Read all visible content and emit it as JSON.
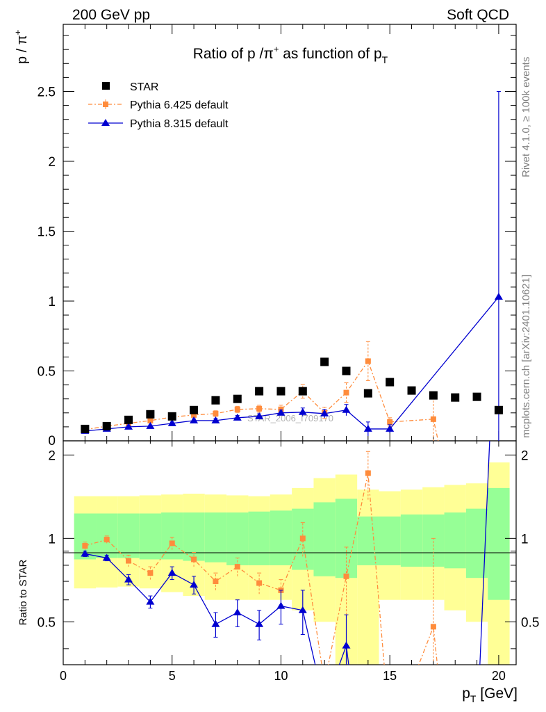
{
  "header": {
    "left": "200 GeV pp",
    "right": "Soft QCD"
  },
  "side_labels": {
    "rivet": "Rivet 4.1.0, ≥ 100k events",
    "mcplots": "mcplots.cern.ch [arXiv:2401.10621]"
  },
  "chart_data": {
    "type": "scatter",
    "title_parts": {
      "pre": "Ratio of p /π",
      "sup": "+",
      "mid": " as function of p",
      "sub": "T"
    },
    "ylabel_main": {
      "base": "p / π",
      "sup": "+"
    },
    "ylabel_ratio": "Ratio to STAR",
    "xlabel": {
      "base": "p",
      "sub": "T",
      "rest": " [GeV]"
    },
    "watermark": "STAR_2006_I709170",
    "xlim": [
      0,
      20.8
    ],
    "ylim_main": [
      0,
      2.98
    ],
    "ylim_ratio": [
      0.35,
      2.25
    ],
    "xticks": [
      0,
      5,
      10,
      15,
      20
    ],
    "xtick_labels": [
      "0",
      "5",
      "10",
      "15",
      "20"
    ],
    "yticks_main": [
      0.5,
      1,
      1.5,
      2,
      2.5
    ],
    "ytick_labels_main": [
      "0.5",
      "1",
      "1.5",
      "2",
      "2.5"
    ],
    "ytick_label_zero": "0",
    "yticks_ratio": [
      0.5,
      1,
      2
    ],
    "ytick_labels_ratio": [
      "0.5",
      "1",
      "2"
    ],
    "legend": [
      "STAR",
      "Pythia 6.425 default",
      "Pythia 8.315 default"
    ],
    "series": [
      {
        "name": "STAR",
        "color": "#000000",
        "marker": "square",
        "x": [
          1,
          2,
          3,
          4,
          5,
          6,
          7,
          8,
          9,
          10,
          11,
          12,
          13,
          14,
          15,
          16,
          17,
          18,
          19,
          20
        ],
        "y": [
          0.085,
          0.105,
          0.15,
          0.19,
          0.175,
          0.22,
          0.29,
          0.3,
          0.355,
          0.355,
          0.355,
          0.565,
          0.5,
          0.34,
          0.42,
          0.36,
          0.325,
          0.31,
          0.315,
          0.22
        ]
      },
      {
        "name": "Pythia 6.425 default",
        "color": "#ff8c3c",
        "marker": "square-small",
        "x": [
          1,
          2,
          3,
          4,
          5,
          6,
          7,
          8,
          9,
          10,
          11,
          12,
          13,
          14,
          15,
          17,
          17.5
        ],
        "y": [
          0.08,
          0.105,
          0.125,
          0.145,
          0.17,
          0.185,
          0.195,
          0.225,
          0.23,
          0.225,
          0.355,
          0.2,
          0.345,
          0.57,
          0.135,
          0.155,
          -0.2
        ],
        "err": [
          0.01,
          0.01,
          0.012,
          0.015,
          0.015,
          0.017,
          0.02,
          0.022,
          0.025,
          0.03,
          0.05,
          0.04,
          0.07,
          0.14,
          0.03,
          0.18,
          0
        ]
      },
      {
        "name": "Pythia 8.315 default",
        "color": "#0000d0",
        "marker": "triangle",
        "x": [
          1,
          2,
          3,
          4,
          5,
          6,
          7,
          8,
          9,
          10,
          11,
          12,
          13,
          14,
          15,
          20
        ],
        "y": [
          0.07,
          0.085,
          0.1,
          0.105,
          0.125,
          0.145,
          0.145,
          0.165,
          0.175,
          0.2,
          0.205,
          0.195,
          0.22,
          0.085,
          0.085,
          1.03
        ],
        "err": [
          0.005,
          0.006,
          0.007,
          0.008,
          0.01,
          0.012,
          0.014,
          0.016,
          0.018,
          0.02,
          0.03,
          0.03,
          0.04,
          0.05,
          0.03,
          1.47
        ]
      }
    ],
    "ratio_band": {
      "xedges": [
        0.5,
        1.5,
        2.5,
        3.5,
        4.5,
        5.5,
        6.5,
        7.5,
        8.5,
        9.5,
        10.5,
        11.5,
        12.5,
        13.5,
        14.5,
        15.5,
        16.5,
        17.5,
        18.5,
        19.5,
        20.5
      ],
      "yellow_lo": [
        0.66,
        0.665,
        0.67,
        0.66,
        0.64,
        0.62,
        0.6,
        0.6,
        0.6,
        0.6,
        0.55,
        0.5,
        0.35,
        0.35,
        0.6,
        0.6,
        0.6,
        0.55,
        0.5,
        0.25
      ],
      "yellow_hi": [
        1.42,
        1.42,
        1.42,
        1.43,
        1.44,
        1.45,
        1.44,
        1.43,
        1.42,
        1.44,
        1.52,
        1.65,
        1.7,
        1.5,
        1.48,
        1.5,
        1.53,
        1.56,
        1.58,
        1.88
      ],
      "green_lo": [
        0.84,
        0.85,
        0.85,
        0.84,
        0.84,
        0.83,
        0.82,
        0.8,
        0.8,
        0.8,
        0.77,
        0.73,
        0.72,
        0.8,
        0.8,
        0.79,
        0.79,
        0.78,
        0.72,
        0.6
      ],
      "green_hi": [
        1.23,
        1.23,
        1.23,
        1.23,
        1.24,
        1.24,
        1.24,
        1.24,
        1.25,
        1.26,
        1.28,
        1.35,
        1.39,
        1.2,
        1.2,
        1.22,
        1.22,
        1.24,
        1.28,
        1.52
      ]
    },
    "ratio_p6": {
      "x": [
        1,
        2,
        3,
        4,
        5,
        6,
        7,
        8,
        9,
        10,
        11,
        12,
        13,
        14,
        15,
        16,
        17,
        17.5
      ],
      "y": [
        0.94,
        0.99,
        0.83,
        0.75,
        0.96,
        0.84,
        0.7,
        0.79,
        0.69,
        0.65,
        1.0,
        0.3,
        0.73,
        1.72,
        0.2,
        0.3,
        0.48,
        0.2
      ],
      "err": [
        0.03,
        0.03,
        0.04,
        0.04,
        0.05,
        0.05,
        0.05,
        0.06,
        0.06,
        0.06,
        0.14,
        0,
        0.2,
        0.34,
        0,
        0,
        0.52,
        0
      ],
      "markers": [
        true,
        true,
        true,
        true,
        true,
        true,
        true,
        true,
        true,
        true,
        true,
        false,
        true,
        true,
        false,
        false,
        true,
        false
      ]
    },
    "ratio_p8": {
      "x": [
        1,
        2,
        3,
        4,
        5,
        6,
        7,
        8,
        9,
        10,
        11,
        12,
        13,
        13.5,
        19.0,
        19.6
      ],
      "y": [
        0.88,
        0.85,
        0.71,
        0.59,
        0.75,
        0.68,
        0.49,
        0.54,
        0.49,
        0.57,
        0.55,
        0.25,
        0.41,
        0.2,
        0.2,
        2.4
      ],
      "err": [
        0.02,
        0.02,
        0.03,
        0.03,
        0.04,
        0.05,
        0.05,
        0.06,
        0.06,
        0.08,
        0.1,
        0,
        0.12,
        0,
        0,
        0
      ],
      "markers": [
        true,
        true,
        true,
        true,
        true,
        true,
        true,
        true,
        true,
        true,
        true,
        false,
        true,
        false,
        false,
        false
      ]
    }
  }
}
